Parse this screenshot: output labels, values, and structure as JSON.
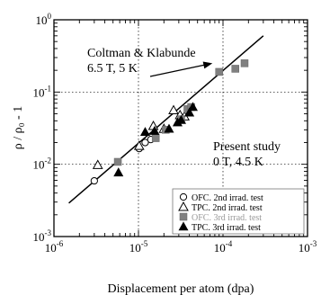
{
  "chart_data": {
    "type": "scatter",
    "xlabel": "Displacement per atom (dpa)",
    "ylabel": "ρ / ρ₀ - 1",
    "xscale": "log",
    "yscale": "log",
    "xlim": [
      1e-06,
      0.001
    ],
    "ylim": [
      0.001,
      1
    ],
    "grid": "dotted at 1e-5, 1e-4 and 1e-2, 1e-1",
    "legend_position": "bottom-right",
    "x_ticks": [
      {
        "base": "10",
        "exp": "-6"
      },
      {
        "base": "10",
        "exp": "-5"
      },
      {
        "base": "10",
        "exp": "-4"
      },
      {
        "base": "10",
        "exp": "-3"
      }
    ],
    "y_ticks": [
      {
        "base": "10",
        "exp": "0"
      },
      {
        "base": "10",
        "exp": "-1"
      },
      {
        "base": "10",
        "exp": "-2"
      },
      {
        "base": "10",
        "exp": "-3"
      }
    ],
    "series": [
      {
        "name": "OFC. 2nd irrad. test",
        "marker": "circle-open",
        "points": [
          [
            3e-06,
            0.0059
          ],
          [
            1.02e-05,
            0.0165
          ],
          [
            1.2e-05,
            0.02
          ],
          [
            1.4e-05,
            0.022
          ]
        ]
      },
      {
        "name": "TPC. 2nd irrad. test",
        "marker": "triangle-open",
        "points": [
          [
            3.3e-06,
            0.0098
          ],
          [
            1.02e-05,
            0.018
          ],
          [
            1.5e-05,
            0.034
          ],
          [
            2e-05,
            0.031
          ],
          [
            2.6e-05,
            0.056
          ],
          [
            3.1e-05,
            0.048
          ],
          [
            3.5e-05,
            0.046
          ]
        ]
      },
      {
        "name": "OFC. 3rd irrad. test",
        "marker": "square-gray",
        "points": [
          [
            5.7e-06,
            0.0108
          ],
          [
            1.6e-05,
            0.023
          ],
          [
            2.1e-05,
            0.03
          ],
          [
            3.2e-05,
            0.042
          ],
          [
            3.8e-05,
            0.058
          ],
          [
            4.2e-05,
            0.062
          ],
          [
            9e-05,
            0.19
          ],
          [
            0.00014,
            0.21
          ],
          [
            0.00018,
            0.25
          ]
        ]
      },
      {
        "name": "TPC. 3rd irrad. test",
        "marker": "triangle-filled",
        "points": [
          [
            5.8e-06,
            0.0077
          ],
          [
            1.2e-05,
            0.028
          ],
          [
            1.55e-05,
            0.029
          ],
          [
            2.3e-05,
            0.031
          ],
          [
            2.9e-05,
            0.038
          ],
          [
            3.2e-05,
            0.041
          ],
          [
            4e-05,
            0.052
          ],
          [
            4.4e-05,
            0.062
          ]
        ]
      }
    ],
    "fit_line": {
      "x": [
        1.5e-06,
        0.0003
      ],
      "y": [
        0.0029,
        0.6
      ]
    },
    "annotations": [
      {
        "lines": [
          "Coltman & Klabunde",
          "6.5 T, 5 K"
        ],
        "arrow_to": [
          7.5e-05,
          0.25
        ]
      },
      {
        "lines": [
          "Present study",
          "0 T, 4.5 K"
        ]
      }
    ]
  }
}
